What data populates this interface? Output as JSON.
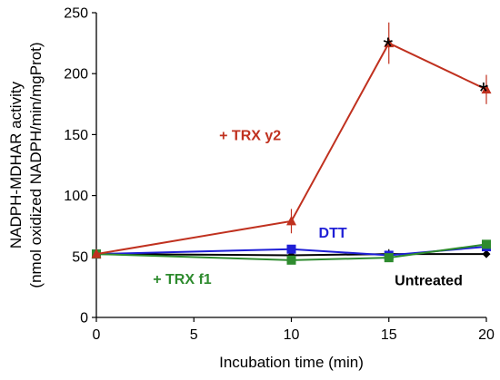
{
  "chart_data": {
    "type": "line",
    "xlabel": "Incubation time (min)",
    "ylabel_lines": [
      "NADPH-MDHAR activity",
      "(nmol oxidized NADPH/min/mgProt)"
    ],
    "xlim": [
      0,
      20
    ],
    "ylim": [
      0,
      250
    ],
    "x_ticks": [
      0,
      5,
      10,
      15,
      20
    ],
    "y_ticks": [
      0,
      50,
      100,
      150,
      200,
      250
    ],
    "grid": false,
    "legend": "none",
    "series": [
      {
        "label": "Untreated",
        "color": "#000000",
        "marker": "diamond",
        "x": [
          0,
          10,
          15,
          20
        ],
        "y": [
          52,
          51,
          52,
          52
        ],
        "error": [
          0,
          0,
          4,
          3
        ]
      },
      {
        "label": "DTT",
        "color": "#1f1fd6",
        "marker": "square",
        "x": [
          0,
          10,
          15,
          20
        ],
        "y": [
          52,
          56,
          51,
          58
        ],
        "error": [
          0,
          2,
          2,
          2
        ]
      },
      {
        "label": "+ TRX f1",
        "color": "#2e8b2e",
        "marker": "square",
        "x": [
          0,
          10,
          15,
          20
        ],
        "y": [
          52,
          47,
          49,
          60
        ],
        "error": [
          0,
          2,
          2,
          2
        ]
      },
      {
        "label": "+ TRX y2",
        "color": "#c0311f",
        "marker": "triangle",
        "x": [
          0,
          10,
          15,
          20
        ],
        "y": [
          52,
          79,
          225,
          187
        ],
        "error": [
          0,
          10,
          17,
          12
        ]
      }
    ],
    "annotations": [
      {
        "name": "trx-y2-label",
        "text": "+ TRX y2",
        "x": 6.3,
        "y": 150,
        "color": "#c0311f",
        "kind": "series"
      },
      {
        "name": "dtt-label",
        "text": "DTT",
        "x": 11.4,
        "y": 70,
        "color": "#1f1fd6",
        "kind": "series"
      },
      {
        "name": "trx-f1-label",
        "text": "+ TRX f1",
        "x": 2.9,
        "y": 32,
        "color": "#2e8b2e",
        "kind": "series"
      },
      {
        "name": "untreated-label",
        "text": "Untreated",
        "x": 15.3,
        "y": 31,
        "color": "#000000",
        "kind": "series"
      },
      {
        "name": "star-15",
        "text": "*",
        "x": 14.7,
        "y": 226,
        "color": "#000000",
        "kind": "star"
      },
      {
        "name": "star-20",
        "text": "*",
        "x": 19.6,
        "y": 189,
        "color": "#000000",
        "kind": "star"
      }
    ]
  }
}
